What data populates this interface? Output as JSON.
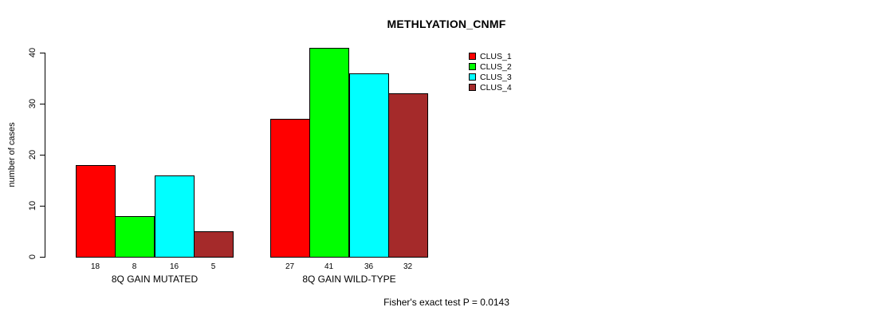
{
  "title": "METHLYATION_CNMF",
  "footer": "Fisher's exact test P = 0.0143",
  "colors": {
    "background": "#FFFFFF",
    "axis": "#000000",
    "bar_border": "#000000",
    "clus_1": "#FF0000",
    "clus_2": "#00FF00",
    "clus_3": "#00FFFF",
    "clus_4": "#A52A2A"
  },
  "chart_data": {
    "type": "bar",
    "title": "METHLYATION_CNMF",
    "xlabel": "",
    "ylabel": "number of cases",
    "ylim": [
      0,
      40
    ],
    "yticks": [
      0,
      10,
      20,
      30,
      40
    ],
    "grid": false,
    "legend_position": "top-right",
    "categories": [
      "8Q GAIN MUTATED",
      "8Q GAIN WILD-TYPE"
    ],
    "series": [
      {
        "name": "CLUS_1",
        "color": "#FF0000",
        "values": [
          18,
          27
        ]
      },
      {
        "name": "CLUS_2",
        "color": "#00FF00",
        "values": [
          8,
          41
        ]
      },
      {
        "name": "CLUS_3",
        "color": "#00FFFF",
        "values": [
          16,
          36
        ]
      },
      {
        "name": "CLUS_4",
        "color": "#A52A2A",
        "values": [
          5,
          32
        ]
      }
    ],
    "bar_value_labels": [
      [
        "18",
        "8",
        "16",
        "5"
      ],
      [
        "27",
        "41",
        "36",
        "32"
      ]
    ],
    "annotation": "Fisher's exact test P = 0.0143"
  }
}
